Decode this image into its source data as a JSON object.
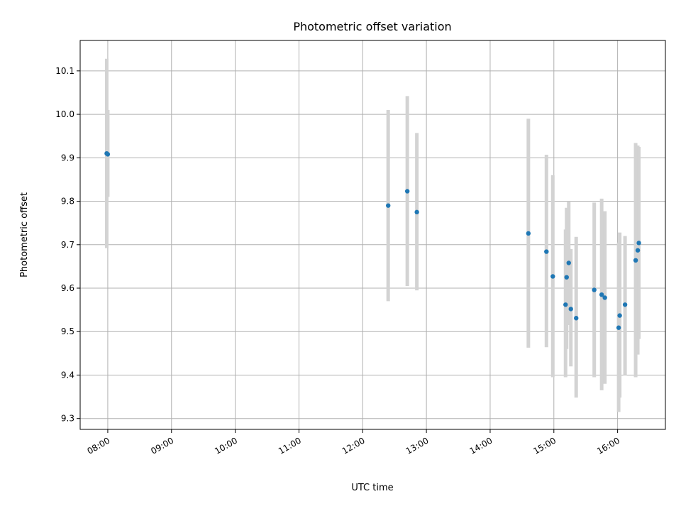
{
  "chart_data": {
    "type": "scatter",
    "title": "Photometric offset variation",
    "xlabel": "UTC time",
    "ylabel": "Photometric offset",
    "x_tick_labels": [
      "08:00",
      "09:00",
      "10:00",
      "11:00",
      "12:00",
      "13:00",
      "14:00",
      "15:00",
      "16:00"
    ],
    "y_tick_labels": [
      "9.3",
      "9.4",
      "9.5",
      "9.6",
      "9.7",
      "9.8",
      "9.9",
      "10.0",
      "10.1"
    ],
    "xlim": [
      "07:34",
      "16:45"
    ],
    "ylim": [
      9.275,
      10.17
    ],
    "grid": true,
    "colors": {
      "marker": "#1f77b4",
      "errorbar": "#d3d3d3"
    },
    "series": [
      {
        "points": [
          {
            "x": "07:59",
            "y": 9.91,
            "ylow": 9.692,
            "yhigh": 10.128
          },
          {
            "x": "08:00",
            "y": 9.908,
            "ylow": 9.81,
            "yhigh": 10.01
          },
          {
            "x": "12:24",
            "y": 9.79,
            "ylow": 9.57,
            "yhigh": 10.01
          },
          {
            "x": "12:42",
            "y": 9.823,
            "ylow": 9.605,
            "yhigh": 10.042
          },
          {
            "x": "12:51",
            "y": 9.775,
            "ylow": 9.595,
            "yhigh": 9.957
          },
          {
            "x": "14:36",
            "y": 9.726,
            "ylow": 9.463,
            "yhigh": 9.99
          },
          {
            "x": "14:53",
            "y": 9.684,
            "ylow": 9.464,
            "yhigh": 9.907
          },
          {
            "x": "14:59",
            "y": 9.627,
            "ylow": 9.395,
            "yhigh": 9.86
          },
          {
            "x": "15:11",
            "y": 9.562,
            "ylow": 9.395,
            "yhigh": 9.735
          },
          {
            "x": "15:12",
            "y": 9.625,
            "ylow": 9.46,
            "yhigh": 9.785
          },
          {
            "x": "15:14",
            "y": 9.658,
            "ylow": 9.515,
            "yhigh": 9.8
          },
          {
            "x": "15:16",
            "y": 9.552,
            "ylow": 9.42,
            "yhigh": 9.69
          },
          {
            "x": "15:21",
            "y": 9.531,
            "ylow": 9.348,
            "yhigh": 9.718
          },
          {
            "x": "15:38",
            "y": 9.596,
            "ylow": 9.395,
            "yhigh": 9.797
          },
          {
            "x": "15:45",
            "y": 9.585,
            "ylow": 9.365,
            "yhigh": 9.806
          },
          {
            "x": "15:48",
            "y": 9.578,
            "ylow": 9.38,
            "yhigh": 9.777
          },
          {
            "x": "16:01",
            "y": 9.509,
            "ylow": 9.315,
            "yhigh": 9.705
          },
          {
            "x": "16:02",
            "y": 9.537,
            "ylow": 9.348,
            "yhigh": 9.728
          },
          {
            "x": "16:07",
            "y": 9.562,
            "ylow": 9.4,
            "yhigh": 9.72
          },
          {
            "x": "16:17",
            "y": 9.664,
            "ylow": 9.395,
            "yhigh": 9.934
          },
          {
            "x": "16:19",
            "y": 9.687,
            "ylow": 9.447,
            "yhigh": 9.928
          },
          {
            "x": "16:20",
            "y": 9.704,
            "ylow": 9.483,
            "yhigh": 9.925
          }
        ]
      }
    ]
  }
}
